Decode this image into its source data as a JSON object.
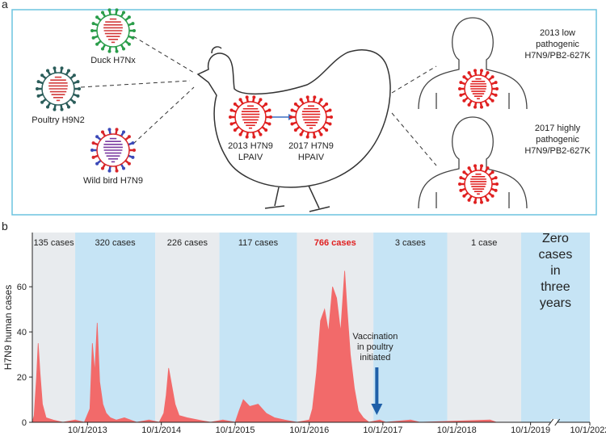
{
  "panel_a": {
    "label": "a",
    "sources": [
      {
        "label": "Duck H7Nx"
      },
      {
        "label": "Poultry H9N2"
      },
      {
        "label": "Wild bird H7N9"
      }
    ],
    "chicken_viruses": [
      {
        "lines": [
          "2013 H7N9",
          "LPAIV"
        ]
      },
      {
        "lines": [
          "2017 H7N9",
          "HPAIV"
        ]
      }
    ],
    "human_infections": [
      {
        "lines": [
          "2013 low",
          "pathogenic",
          "H7N9/PB2-627K"
        ]
      },
      {
        "lines": [
          "2017 highly",
          "pathogenic",
          "H7N9/PB2-627K"
        ]
      }
    ]
  },
  "panel_b": {
    "label": "b"
  },
  "chart_data": {
    "type": "area",
    "ylabel": "H7N9 human cases",
    "color": "#f26a6a",
    "x": [
      "1/1/2013",
      "1/10/2013",
      "1/22/2013",
      "1/30/2013",
      "2/8/2013",
      "2/20/2013",
      "3/10/2013",
      "4/15/2013",
      "6/1/2013",
      "8/1/2013",
      "9/15/2013",
      "10/13/2013",
      "10/25/2013",
      "11/6/2013",
      "11/18/2013",
      "11/30/2013",
      "12/16/2013",
      "1/1/2014",
      "1/22/2014",
      "2/20/2014",
      "4/1/2014",
      "6/1/2014",
      "8/1/2014",
      "9/20/2014",
      "10/13/2014",
      "10/25/2014",
      "11/6/2014",
      "11/22/2014",
      "12/8/2014",
      "12/28/2014",
      "2/5/2015",
      "4/1/2015",
      "6/1/2015",
      "8/1/2015",
      "10/1/2015",
      "10/20/2015",
      "11/10/2015",
      "12/12/2015",
      "1/22/2016",
      "3/2/2016",
      "4/12/2016",
      "6/1/2016",
      "8/1/2016",
      "10/1/2016",
      "10/17/2016",
      "11/6/2016",
      "11/26/2016",
      "12/16/2016",
      "1/5/2017",
      "1/25/2017",
      "2/14/2017",
      "3/6/2017",
      "3/26/2017",
      "4/7/2017",
      "4/23/2017",
      "5/13/2017",
      "6/2/2017",
      "6/26/2017",
      "7/24/2017",
      "9/15/2017",
      "10/15/2017",
      "2/15/2018",
      "4/1/2018",
      "3/15/2019",
      "4/15/2019",
      "10/1/2022"
    ],
    "values": [
      0,
      3,
      20,
      35,
      22,
      8,
      2,
      1,
      0,
      1,
      0,
      6,
      35,
      22,
      44,
      18,
      8,
      4,
      2,
      1,
      2,
      0,
      1,
      0,
      4,
      12,
      24,
      16,
      8,
      3,
      2,
      1,
      0,
      1,
      0,
      5,
      10,
      7,
      8,
      4,
      2,
      1,
      0,
      1,
      6,
      22,
      45,
      50,
      40,
      60,
      55,
      40,
      67,
      50,
      30,
      15,
      5,
      2,
      0,
      1,
      0,
      1,
      0,
      1,
      0,
      0
    ],
    "xlim": [
      "1/1/2013",
      "10/1/2022"
    ],
    "x_break": [
      "1/1/2020",
      "5/1/2022"
    ],
    "xticks": [
      "10/1/2013",
      "10/1/2014",
      "10/1/2015",
      "10/1/2016",
      "10/1/2017",
      "10/1/2018",
      "10/1/2019",
      "10/1/2022"
    ],
    "ylim": [
      0,
      84
    ],
    "yticks": [
      0,
      20,
      40,
      60
    ],
    "periods": [
      {
        "start": "1/1/2013",
        "end": "8/1/2013",
        "label": "135 cases",
        "color": "#e8ebee",
        "label_color": "#222"
      },
      {
        "start": "8/1/2013",
        "end": "9/1/2014",
        "label": "320 cases",
        "color": "#c6e4f5",
        "label_color": "#222"
      },
      {
        "start": "9/1/2014",
        "end": "7/15/2015",
        "label": "226 cases",
        "color": "#e8ebee",
        "label_color": "#222"
      },
      {
        "start": "7/15/2015",
        "end": "8/1/2016",
        "label": "117 cases",
        "color": "#c6e4f5",
        "label_color": "#222"
      },
      {
        "start": "8/1/2016",
        "end": "8/15/2017",
        "label": "766 cases",
        "color": "#e8ebee",
        "label_color": "#e02020"
      },
      {
        "start": "8/15/2017",
        "end": "8/15/2018",
        "label": "3 cases",
        "color": "#c6e4f5",
        "label_color": "#222"
      },
      {
        "start": "8/15/2018",
        "end": "8/15/2019",
        "label": "1 case",
        "color": "#e8ebee",
        "label_color": "#222"
      },
      {
        "start": "8/15/2019",
        "end": "10/1/2022",
        "label": [
          "Zero",
          "cases",
          "in",
          "three",
          "years"
        ],
        "color": "#c6e4f5",
        "label_color": "#222"
      }
    ],
    "annotation": {
      "lines": [
        "Vaccination",
        "in poultry",
        "initiated"
      ],
      "x": "9/1/2017",
      "color": "#1f5fa8"
    }
  }
}
